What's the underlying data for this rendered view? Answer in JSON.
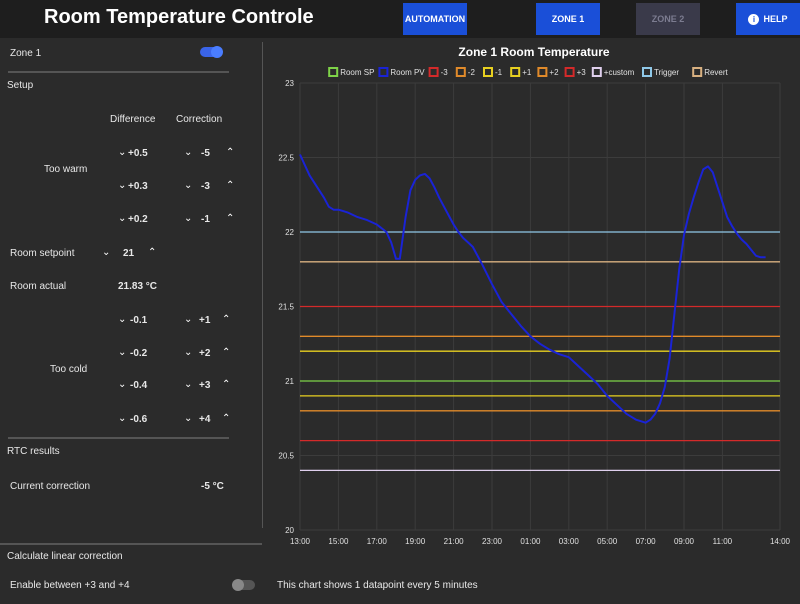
{
  "app": {
    "title": "Room Temperature Controle"
  },
  "nav": {
    "automation": "AUTOMATION",
    "zone1": "ZONE 1",
    "zone2": "ZONE 2",
    "help": "HELP"
  },
  "panel": {
    "zone_label": "Zone 1",
    "zone_enabled": true,
    "setup": "Setup",
    "col_difference": "Difference",
    "col_correction": "Correction",
    "too_warm": "Too warm",
    "warm_rows": [
      {
        "difference": "+0.5",
        "correction": "-5"
      },
      {
        "difference": "+0.3",
        "correction": "-3"
      },
      {
        "difference": "+0.2",
        "correction": "-1"
      }
    ],
    "room_setpoint_label": "Room setpoint",
    "room_setpoint_value": "21",
    "room_actual_label": "Room actual",
    "room_actual_value": "21.83 °C",
    "too_cold": "Too cold",
    "cold_rows": [
      {
        "difference": "-0.1",
        "correction": "+1"
      },
      {
        "difference": "-0.2",
        "correction": "+2"
      },
      {
        "difference": "-0.4",
        "correction": "+3"
      },
      {
        "difference": "-0.6",
        "correction": "+4"
      }
    ],
    "rtc_results": "RTC results",
    "current_correction_label": "Current correction",
    "current_correction_value": "-5 °C",
    "calc_linear": "Calculate linear correction",
    "enable_between": "Enable between +3 and +4",
    "enable_linear": false
  },
  "icons": {
    "chevron_down": "chevron-down-icon",
    "chevron_up": "chevron-up-icon",
    "help": "info-icon"
  },
  "colors": {
    "accent": "#1a4fd8",
    "room_pv": "#1a23d6"
  },
  "chart_note": "This chart shows 1 datapoint every 5 minutes",
  "chart_data": {
    "type": "line",
    "title": "Zone 1 Room Temperature",
    "ylim": [
      20,
      23
    ],
    "yticks": [
      "20",
      "20.5",
      "21",
      "21.5",
      "22",
      "22.5",
      "23"
    ],
    "xticks": [
      "13:00",
      "15:00",
      "17:00",
      "19:00",
      "21:00",
      "23:00",
      "01:00",
      "03:00",
      "05:00",
      "07:00",
      "09:00",
      "11:00",
      "14:00"
    ],
    "grid": true,
    "legend_position": "top",
    "thresholds": [
      {
        "name": "Room SP",
        "value": 21.0,
        "color": "#7ed348"
      },
      {
        "name": "-3",
        "value": 20.6,
        "color": "#d42a2a"
      },
      {
        "name": "-2",
        "value": 20.8,
        "color": "#e08a2a"
      },
      {
        "name": "-1",
        "value": 20.9,
        "color": "#e8d020"
      },
      {
        "name": "+1",
        "value": 21.2,
        "color": "#e8d020"
      },
      {
        "name": "+2",
        "value": 21.3,
        "color": "#e08a2a"
      },
      {
        "name": "+3",
        "value": 21.5,
        "color": "#d42a2a"
      },
      {
        "name": "+custom",
        "value": 20.4,
        "color": "#e0d0ee"
      },
      {
        "name": "Trigger",
        "value": 22.0,
        "color": "#8fc8e8"
      },
      {
        "name": "Revert",
        "value": 21.8,
        "color": "#d8b080"
      }
    ],
    "legend": [
      {
        "name": "Room SP",
        "color": "#7ed348"
      },
      {
        "name": "Room PV",
        "color": "#1a23d6"
      },
      {
        "name": "-3",
        "color": "#d42a2a"
      },
      {
        "name": "-2",
        "color": "#e08a2a"
      },
      {
        "name": "-1",
        "color": "#e8d020"
      },
      {
        "name": "+1",
        "color": "#e8d020"
      },
      {
        "name": "+2",
        "color": "#e08a2a"
      },
      {
        "name": "+3",
        "color": "#d42a2a"
      },
      {
        "name": "+custom",
        "color": "#e0d0ee"
      },
      {
        "name": "Trigger",
        "color": "#8fc8e8"
      },
      {
        "name": "Revert",
        "color": "#d8b080"
      }
    ],
    "series": [
      {
        "name": "Room PV",
        "x_hours": [
          13.0,
          13.25,
          13.5,
          13.75,
          14.0,
          14.25,
          14.5,
          14.75,
          15.0,
          15.25,
          15.5,
          16.0,
          16.5,
          17.0,
          17.5,
          17.75,
          18.0,
          18.2,
          18.5,
          18.75,
          19.0,
          19.25,
          19.5,
          19.75,
          20.0,
          20.25,
          20.5,
          20.75,
          21.0,
          21.25,
          21.5,
          21.75,
          22.0,
          22.5,
          23.0,
          23.5,
          24.0,
          24.5,
          25.0,
          25.5,
          26.0,
          26.5,
          27.0,
          27.5,
          28.0,
          28.5,
          29.0,
          29.5,
          30.0,
          30.5,
          31.0,
          31.25,
          31.5,
          31.75,
          32.0,
          32.25,
          32.5,
          32.75,
          33.0,
          33.25,
          33.5,
          33.75,
          34.0,
          34.25,
          34.5,
          34.75,
          35.0,
          35.25,
          35.5,
          35.75,
          36.0,
          36.25,
          36.5,
          36.75,
          37.0,
          37.25
        ],
        "values": [
          22.52,
          22.45,
          22.38,
          22.33,
          22.28,
          22.23,
          22.17,
          22.15,
          22.15,
          22.14,
          22.13,
          22.1,
          22.08,
          22.05,
          22.0,
          21.93,
          21.82,
          21.82,
          22.1,
          22.28,
          22.35,
          22.38,
          22.39,
          22.36,
          22.3,
          22.23,
          22.17,
          22.11,
          22.05,
          22.0,
          21.96,
          21.93,
          21.9,
          21.78,
          21.65,
          21.53,
          21.45,
          21.37,
          21.3,
          21.25,
          21.21,
          21.18,
          21.16,
          21.1,
          21.04,
          20.98,
          20.9,
          20.84,
          20.78,
          20.74,
          20.72,
          20.74,
          20.78,
          20.85,
          20.96,
          21.15,
          21.45,
          21.75,
          21.98,
          22.12,
          22.23,
          22.33,
          22.42,
          22.44,
          22.4,
          22.3,
          22.2,
          22.1,
          22.04,
          21.99,
          21.95,
          21.92,
          21.88,
          21.84,
          21.83,
          21.83
        ]
      }
    ]
  }
}
